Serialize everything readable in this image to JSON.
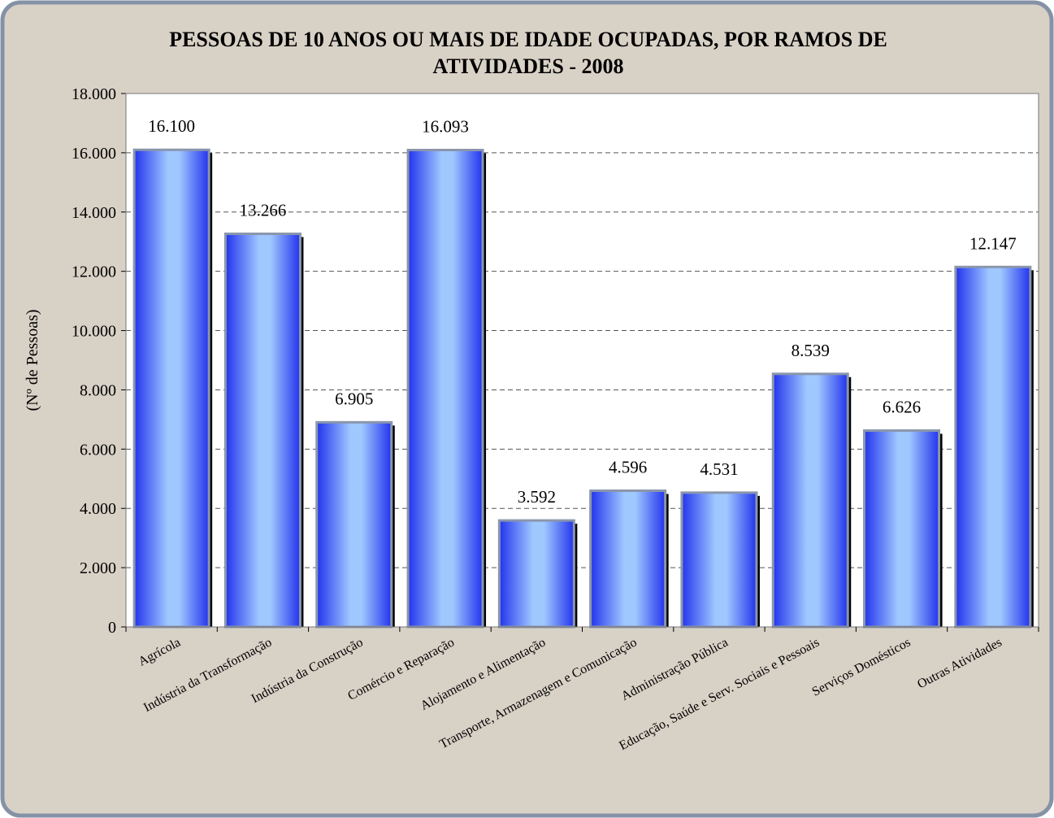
{
  "chart_data": {
    "type": "bar",
    "title": "PESSOAS DE 10 ANOS OU MAIS DE IDADE OCUPADAS, POR RAMOS DE ATIVIDADES - 2008",
    "y_label": "(Nº de Pessoas)",
    "categories": [
      "Agrícola",
      "Indústria da Transformação",
      "Indústria da Construção",
      "Comércio e Reparação",
      "Alojamento e Alimentação",
      "Transporte, Armazenagem e Comunicação",
      "Administração Pública",
      "Educação, Saúde e Serv. Sociais e Pessoais",
      "Serviços Domésticos",
      "Outras Atividades"
    ],
    "values": [
      16100,
      13266,
      6905,
      16093,
      3592,
      4596,
      4531,
      8539,
      6626,
      12147
    ],
    "value_labels": [
      "16.100",
      "13.266",
      "6.905",
      "16.093",
      "3.592",
      "4.596",
      "4.531",
      "8.539",
      "6.626",
      "12.147"
    ],
    "color": "#3355ee",
    "ylim": [
      0,
      18000
    ],
    "yticks": [
      0,
      {
        "value": 2000,
        "label": "2.000"
      },
      {
        "value": 4000,
        "label": "4.000"
      },
      {
        "value": 6000,
        "label": "6.000"
      },
      {
        "value": 8000,
        "label": "8.000"
      },
      {
        "value": 10000,
        "label": "10.000"
      },
      {
        "value": 12000,
        "label": "12.000"
      },
      {
        "value": 14000,
        "label": "14.000"
      },
      {
        "value": 16000,
        "label": "16.000"
      },
      {
        "value": 18000,
        "label": "18.000"
      }
    ],
    "grid": true
  }
}
